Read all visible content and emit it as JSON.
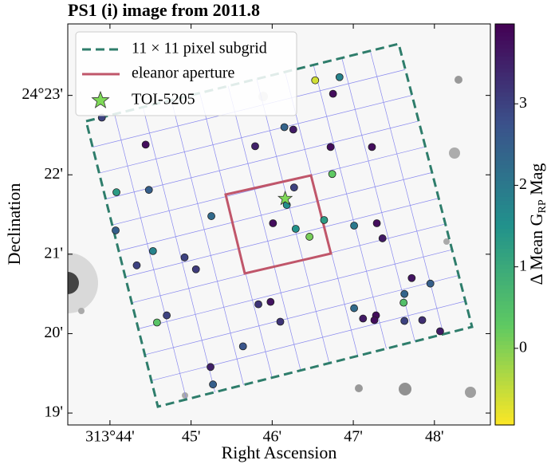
{
  "chart_data": {
    "type": "scatter",
    "title": "PS1 (i) image from 2011.8",
    "xlabel": "Right Ascension",
    "ylabel": "Declination",
    "xlim": [
      43.48,
      48.69
    ],
    "ylim": [
      18.85,
      23.9
    ],
    "xticks": [
      {
        "value": 44,
        "label": "313°44'"
      },
      {
        "value": 45,
        "label": "45'"
      },
      {
        "value": 46,
        "label": "46'"
      },
      {
        "value": 47,
        "label": "47'"
      },
      {
        "value": 48,
        "label": "48'"
      }
    ],
    "yticks": [
      {
        "value": 19,
        "label": "19'"
      },
      {
        "value": 20,
        "label": "20'"
      },
      {
        "value": 21,
        "label": "21'"
      },
      {
        "value": 22,
        "label": "22'"
      },
      {
        "value": 23,
        "label": "24°23'"
      }
    ],
    "x": [
      46.53,
      46.83,
      46.75,
      43.9,
      46.15,
      46.26,
      44.44,
      45.79,
      46.72,
      47.23,
      46.74,
      44.08,
      44.48,
      46.27,
      46.18,
      45.25,
      46.64,
      47.01,
      46.01,
      47.29,
      46.29,
      46.46,
      44.07,
      47.36,
      44.53,
      44.92,
      44.33,
      45.06,
      47.72,
      47.95,
      47.63,
      45.83,
      45.98,
      47.01,
      47.62,
      44.7,
      44.58,
      47.12,
      47.28,
      47.26,
      46.1,
      47.63,
      47.85,
      48.07,
      45.64,
      45.24,
      45.27
    ],
    "y": [
      23.19,
      23.23,
      23.02,
      22.72,
      22.6,
      22.57,
      22.38,
      22.36,
      22.35,
      22.35,
      22.01,
      21.78,
      21.81,
      21.84,
      21.62,
      21.48,
      21.43,
      21.36,
      21.39,
      21.39,
      21.32,
      21.22,
      21.3,
      21.2,
      21.04,
      20.96,
      20.86,
      20.81,
      20.7,
      20.63,
      20.5,
      20.37,
      20.4,
      20.32,
      20.39,
      20.23,
      20.14,
      20.19,
      20.23,
      20.17,
      20.15,
      20.16,
      20.17,
      20.03,
      19.84,
      19.58,
      19.36
    ],
    "values": [
      -0.6,
      1.8,
      3.8,
      3.0,
      2.4,
      3.6,
      3.8,
      3.5,
      3.8,
      3.8,
      0.3,
      1.3,
      2.5,
      3.0,
      1.6,
      2.3,
      1.3,
      2.0,
      3.8,
      3.8,
      1.5,
      0.1,
      2.5,
      3.6,
      1.8,
      3.0,
      3.0,
      3.1,
      3.7,
      2.5,
      2.4,
      3.2,
      3.7,
      2.3,
      0.5,
      3.0,
      0.4,
      3.6,
      3.8,
      3.8,
      3.2,
      3.0,
      3.3,
      3.6,
      2.7,
      3.5,
      2.5
    ],
    "cmap": "viridis_r",
    "clim": [
      -0.94,
      3.98
    ],
    "cticks": [
      0,
      1,
      2,
      3
    ],
    "colorbar_label": "Δ Mean G",
    "colorbar_label_sub": "RP",
    "colorbar_label_end": " Mag",
    "target": {
      "name": "TOI-5205",
      "x": 46.16,
      "y": 21.7,
      "color": "#7ed957"
    },
    "legend": [
      {
        "name": "11 × 11 pixel subgrid",
        "color": "#2e7d6b"
      },
      {
        "name": "eleanor aperture",
        "color": "#c0566a"
      }
    ]
  }
}
